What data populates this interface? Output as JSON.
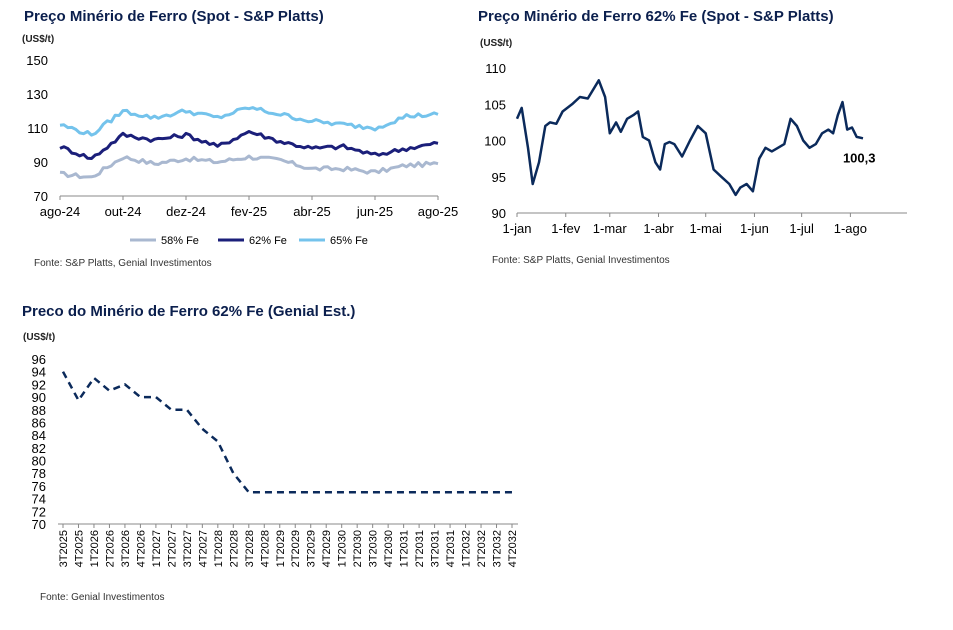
{
  "charts": {
    "c1": {
      "title": "Preço Minério de Ferro (Spot - S&P Platts)",
      "unit": "(US$/t)",
      "source": "Fonte: S&P Platts, Genial Investimentos"
    },
    "c2": {
      "title": "Preço Minério de Ferro 62% Fe (Spot - S&P Platts)",
      "unit": "(US$/t)",
      "source": "Fonte: S&P Platts, Genial Investimentos",
      "last_label": "100,3"
    },
    "c3": {
      "title": "Preco do Minério de Ferro 62% Fe (Genial Est.)",
      "unit": "(US$/t)",
      "source": "Fonte: Genial Investimentos"
    }
  },
  "colors": {
    "fe58": "#a9b8d0",
    "fe62": "#1b1f7a",
    "fe65": "#74c3ec",
    "navy": "#0b2a5b"
  },
  "chart_data": [
    {
      "type": "line",
      "title": "Preço Minério de Ferro (Spot - S&P Platts)",
      "ylabel": "(US$/t)",
      "ylim": [
        70,
        150
      ],
      "yticks": [
        70,
        90,
        110,
        130,
        150
      ],
      "xticks": [
        "ago-24",
        "out-24",
        "dez-24",
        "fev-25",
        "abr-25",
        "jun-25",
        "ago-25"
      ],
      "x": [
        "ago-24",
        "set-24",
        "out-24",
        "nov-24",
        "dez-24",
        "jan-25",
        "fev-25",
        "mar-25",
        "abr-25",
        "mai-25",
        "jun-25",
        "jul-25",
        "ago-25"
      ],
      "series": [
        {
          "name": "58% Fe",
          "color": "#a9b8d0",
          "values": [
            83,
            81,
            93,
            89,
            92,
            90,
            93,
            91,
            86,
            86,
            84,
            88,
            89
          ]
        },
        {
          "name": "62% Fe",
          "color": "#1b1f7a",
          "values": [
            99,
            92,
            106,
            103,
            106,
            99,
            108,
            102,
            98,
            99,
            94,
            98,
            101
          ]
        },
        {
          "name": "65% Fe",
          "color": "#74c3ec",
          "values": [
            112,
            106,
            120,
            116,
            120,
            116,
            122,
            118,
            114,
            112,
            110,
            117,
            118
          ]
        }
      ],
      "legend": "bottom"
    },
    {
      "type": "line",
      "title": "Preço Minério de Ferro 62% Fe (Spot - S&P Platts)",
      "ylabel": "(US$/t)",
      "ylim": [
        90,
        110
      ],
      "yticks": [
        90,
        95,
        100,
        105,
        110
      ],
      "xticks": [
        "1-jan",
        "1-fev",
        "1-mar",
        "1-abr",
        "1-mai",
        "1-jun",
        "1-jul",
        "1-ago"
      ],
      "x_days": [
        0,
        3,
        7,
        10,
        14,
        18,
        21,
        25,
        29,
        35,
        40,
        45,
        52,
        56,
        59,
        63,
        66,
        70,
        74,
        77,
        80,
        84,
        88,
        91,
        94,
        97,
        100,
        105,
        110,
        115,
        120,
        125,
        130,
        135,
        139,
        142,
        146,
        150,
        154,
        158,
        162,
        166,
        170,
        174,
        178,
        182,
        186,
        190,
        194,
        198,
        201,
        204,
        207,
        210,
        213,
        216,
        220
      ],
      "values": [
        103,
        104.5,
        99,
        94,
        97,
        102,
        102.5,
        102.3,
        104,
        105,
        106,
        105.8,
        108.3,
        106,
        101,
        102.5,
        101.2,
        103,
        103.5,
        104,
        100.5,
        100,
        97,
        96,
        99.5,
        99.8,
        99.5,
        97.8,
        100,
        102,
        101,
        96,
        95,
        94,
        92.5,
        93.5,
        94,
        93,
        97.5,
        99,
        98.5,
        99,
        99.5,
        103,
        102,
        100,
        99,
        99.5,
        101,
        101.5,
        101,
        103.5,
        105.3,
        101.5,
        101.8,
        100.5,
        100.3
      ],
      "end_label": "100,3",
      "colors": "#0b2a5b"
    },
    {
      "type": "line",
      "title": "Preco do Minério de Ferro 62% Fe (Genial Est.)",
      "ylabel": "(US$/t)",
      "ylim": [
        70,
        96
      ],
      "yticks": [
        70,
        72,
        74,
        76,
        78,
        80,
        82,
        84,
        86,
        88,
        90,
        92,
        94,
        96
      ],
      "categories": [
        "3T2025",
        "4T2025",
        "1T2026",
        "2T2026",
        "3T2026",
        "4T2026",
        "1T2027",
        "2T2027",
        "3T2027",
        "4T2027",
        "1T2028",
        "2T2028",
        "3T2028",
        "4T2028",
        "1T2029",
        "2T2029",
        "3T2029",
        "4T2029",
        "1T2030",
        "2T2030",
        "3T2030",
        "4T2030",
        "1T2031",
        "2T2031",
        "3T2031",
        "4T2031",
        "1T2032",
        "2T2032",
        "3T2032",
        "4T2032"
      ],
      "values": [
        94,
        89.5,
        93,
        91,
        92,
        90,
        90,
        88,
        88,
        85,
        83,
        78,
        75,
        75,
        75,
        75,
        75,
        75,
        75,
        75,
        75,
        75,
        75,
        75,
        75,
        75,
        75,
        75,
        75,
        75
      ],
      "style": "dashed",
      "colors": "#0b2a5b"
    }
  ]
}
